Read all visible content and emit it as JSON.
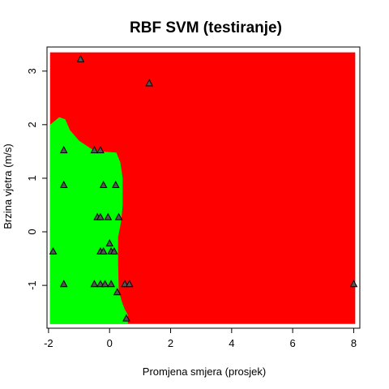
{
  "chart_data": {
    "type": "scatter",
    "title": "RBF SVM (testiranje)",
    "xlabel": "Promjena smjera (prosjek)",
    "ylabel": "Brzina vjetra (m/s)",
    "xlim": [
      -2.05,
      8.2
    ],
    "ylim": [
      -1.8,
      3.45
    ],
    "xticks": [
      -2,
      0,
      2,
      4,
      6,
      8
    ],
    "yticks": [
      -1,
      0,
      1,
      2,
      3
    ],
    "grid": false,
    "legend": "none",
    "colors": {
      "region_class_a": "#00ff00",
      "region_class_b": "#ff0000",
      "point_fill": "#555555",
      "point_stroke": "#000000"
    },
    "decision_regions": {
      "plot_extent": {
        "x": [
          -1.95,
          8.05
        ],
        "y": [
          -1.72,
          3.35
        ]
      },
      "class_a_boundary": [
        [
          -1.95,
          -1.72
        ],
        [
          0.6,
          -1.72
        ],
        [
          0.6,
          -1.55
        ],
        [
          0.5,
          -1.45
        ],
        [
          0.4,
          -1.3
        ],
        [
          0.3,
          -1.1
        ],
        [
          0.28,
          -0.6
        ],
        [
          0.28,
          -0.1
        ],
        [
          0.38,
          0.2
        ],
        [
          0.43,
          0.5
        ],
        [
          0.43,
          1.0
        ],
        [
          0.35,
          1.3
        ],
        [
          0.22,
          1.48
        ],
        [
          -0.3,
          1.5
        ],
        [
          -0.6,
          1.55
        ],
        [
          -1.0,
          1.7
        ],
        [
          -1.3,
          1.9
        ],
        [
          -1.45,
          2.1
        ],
        [
          -1.65,
          2.14
        ],
        [
          -1.95,
          2.0
        ]
      ]
    },
    "series": [
      {
        "marker": "triangle",
        "points": [
          [
            -0.95,
            3.22
          ],
          [
            1.3,
            2.77
          ],
          [
            -1.5,
            1.52
          ],
          [
            -0.5,
            1.52
          ],
          [
            -0.3,
            1.52
          ],
          [
            -1.5,
            0.87
          ],
          [
            -0.2,
            0.87
          ],
          [
            0.2,
            0.87
          ],
          [
            -0.4,
            0.27
          ],
          [
            -0.3,
            0.27
          ],
          [
            -0.05,
            0.27
          ],
          [
            0.3,
            0.27
          ],
          [
            -1.85,
            -0.37
          ],
          [
            -0.3,
            -0.37
          ],
          [
            -0.2,
            -0.37
          ],
          [
            0.0,
            -0.22
          ],
          [
            0.05,
            -0.37
          ],
          [
            0.15,
            -0.37
          ],
          [
            -1.5,
            -0.98
          ],
          [
            -0.5,
            -0.98
          ],
          [
            -0.3,
            -0.98
          ],
          [
            -0.15,
            -0.98
          ],
          [
            0.05,
            -0.98
          ],
          [
            0.5,
            -0.98
          ],
          [
            0.65,
            -0.98
          ],
          [
            0.25,
            -1.13
          ],
          [
            0.55,
            -1.62
          ],
          [
            8.0,
            -0.98
          ]
        ]
      }
    ]
  }
}
